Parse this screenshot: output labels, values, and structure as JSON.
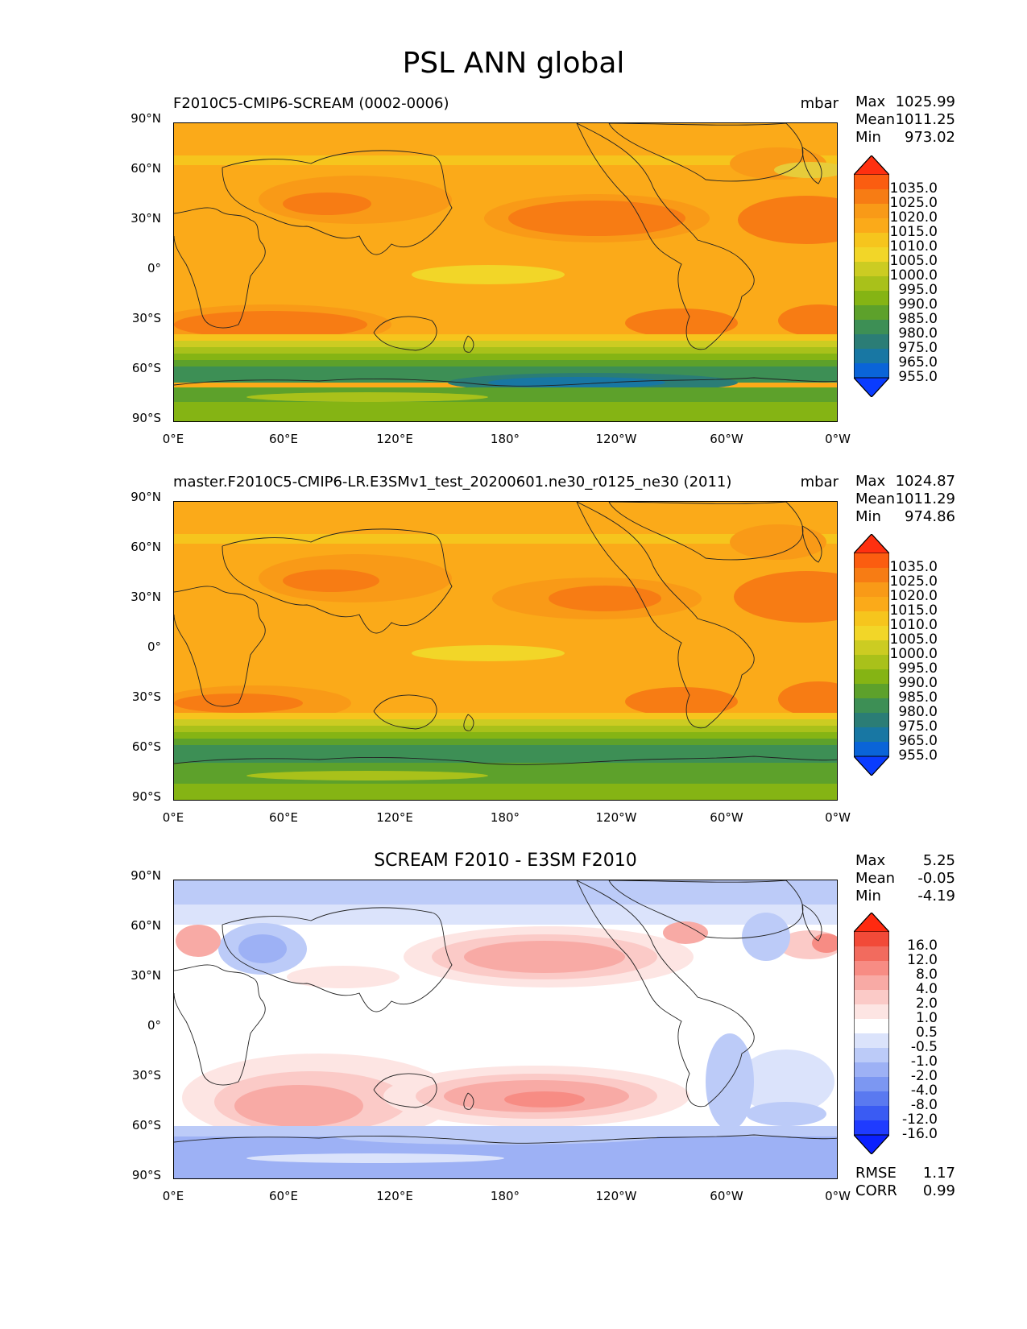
{
  "figure": {
    "title": "PSL ANN global"
  },
  "chart_data": [
    {
      "type": "heatmap",
      "title_left": "F2010C5-CMIP6-SCREAM (0002-0006)",
      "title_right": "mbar",
      "stats": {
        "max_label": "Max",
        "max": "1025.99",
        "mean_label": "Mean",
        "mean": "1011.25",
        "min_label": "Min",
        "min": "973.02"
      },
      "xticks": [
        "0°E",
        "60°E",
        "120°E",
        "180°",
        "120°W",
        "60°W",
        "0°W"
      ],
      "yticks": [
        "90°N",
        "60°N",
        "30°N",
        "0°",
        "30°S",
        "60°S",
        "90°S"
      ],
      "levels": [
        "1035.0",
        "1025.0",
        "1020.0",
        "1015.0",
        "1010.0",
        "1005.0",
        "1000.0",
        "995.0",
        "990.0",
        "985.0",
        "980.0",
        "975.0",
        "965.0",
        "955.0"
      ],
      "colors": [
        "#ff3010",
        "#fb5d10",
        "#f77c14",
        "#f99a17",
        "#fbaa19",
        "#f6c51d",
        "#f2d628",
        "#cccc22",
        "#a9c11a",
        "#85b414",
        "#5da12b",
        "#3d8f55",
        "#2b7d76",
        "#1877a3",
        "#0a64d8",
        "#0a3cff"
      ]
    },
    {
      "type": "heatmap",
      "title_left": "master.F2010C5-CMIP6-LR.E3SMv1_test_20200601.ne30_r0125_ne30 (2011)",
      "title_right": "mbar",
      "stats": {
        "max_label": "Max",
        "max": "1024.87",
        "mean_label": "Mean",
        "mean": "1011.29",
        "min_label": "Min",
        "min": "974.86"
      },
      "xticks": [
        "0°E",
        "60°E",
        "120°E",
        "180°",
        "120°W",
        "60°W",
        "0°W"
      ],
      "yticks": [
        "90°N",
        "60°N",
        "30°N",
        "0°",
        "30°S",
        "60°S",
        "90°S"
      ],
      "levels": [
        "1035.0",
        "1025.0",
        "1020.0",
        "1015.0",
        "1010.0",
        "1005.0",
        "1000.0",
        "995.0",
        "990.0",
        "985.0",
        "980.0",
        "975.0",
        "965.0",
        "955.0"
      ],
      "colors": [
        "#ff3010",
        "#fb5d10",
        "#f77c14",
        "#f99a17",
        "#fbaa19",
        "#f6c51d",
        "#f2d628",
        "#cccc22",
        "#a9c11a",
        "#85b414",
        "#5da12b",
        "#3d8f55",
        "#2b7d76",
        "#1877a3",
        "#0a64d8",
        "#0a3cff"
      ]
    },
    {
      "type": "heatmap",
      "title_center": "SCREAM F2010 - E3SM F2010",
      "stats": {
        "max_label": "Max",
        "max": "5.25",
        "mean_label": "Mean",
        "mean": "-0.05",
        "min_label": "Min",
        "min": "-4.19"
      },
      "rmse_label": "RMSE",
      "rmse": "1.17",
      "corr_label": "CORR",
      "corr": "0.99",
      "xticks": [
        "0°E",
        "60°E",
        "120°E",
        "180°",
        "120°W",
        "60°W",
        "0°W"
      ],
      "yticks": [
        "90°N",
        "60°N",
        "30°N",
        "0°",
        "30°S",
        "60°S",
        "90°S"
      ],
      "levels": [
        "16.0",
        "12.0",
        "8.0",
        "4.0",
        "2.0",
        "1.0",
        "0.5",
        "-0.5",
        "-1.0",
        "-2.0",
        "-4.0",
        "-8.0",
        "-12.0",
        "-16.0"
      ],
      "colors": [
        "#ff2a10",
        "#f24a38",
        "#f26b5e",
        "#f78c84",
        "#f8aaa5",
        "#fbcac7",
        "#fde5e3",
        "#ffffff",
        "#dbe3fb",
        "#bccbf8",
        "#9db1f5",
        "#7c97f2",
        "#5a79f0",
        "#3a5bf3",
        "#1f3bff",
        "#0a20ff"
      ]
    }
  ]
}
